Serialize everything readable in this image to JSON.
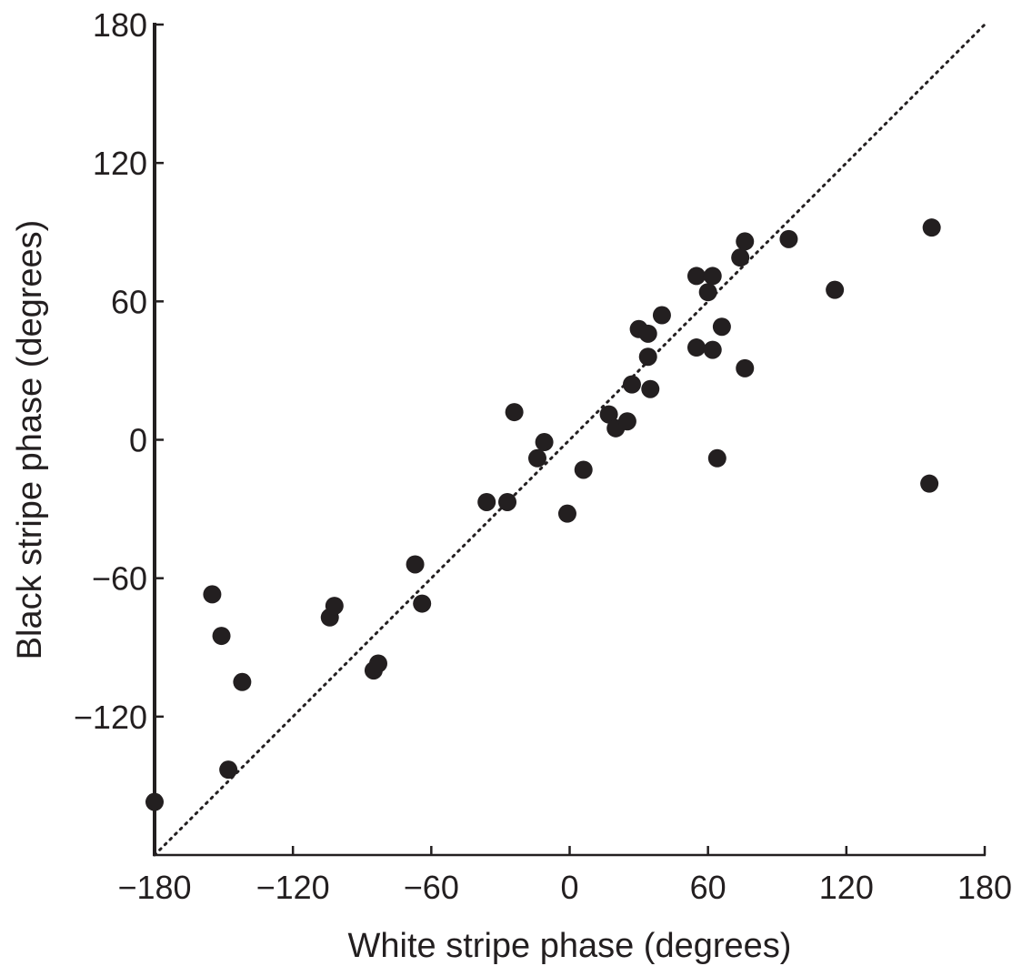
{
  "chart_data": {
    "type": "scatter",
    "title": "",
    "xlabel": "White stripe phase (degrees)",
    "ylabel": "Black stripe phase (degrees)",
    "xlim": [
      -180,
      180
    ],
    "ylim": [
      -180,
      180
    ],
    "xticks": [
      -180,
      -120,
      -60,
      0,
      60,
      120,
      180
    ],
    "yticks": [
      -120,
      -60,
      0,
      60,
      120,
      180
    ],
    "xtick_labels": [
      "−180",
      "−120",
      "−60",
      "0",
      "60",
      "120",
      "180"
    ],
    "ytick_labels": [
      "−120",
      "−60",
      "0",
      "60",
      "120",
      "180"
    ],
    "grid": false,
    "reference_line": {
      "style": "dotted",
      "from": [
        -180,
        -180
      ],
      "to": [
        180,
        180
      ]
    },
    "marker_color": "#231f20",
    "axis_color": "#231f20",
    "series": [
      {
        "points": [
          [
            -180,
            -157
          ],
          [
            -155,
            -67
          ],
          [
            -151,
            -85
          ],
          [
            -148,
            -143
          ],
          [
            -142,
            -105
          ],
          [
            -104,
            -77
          ],
          [
            -102,
            -72
          ],
          [
            -85,
            -100
          ],
          [
            -83,
            -97
          ],
          [
            -67,
            -54
          ],
          [
            -64,
            -71
          ],
          [
            -36,
            -27
          ],
          [
            -27,
            -27
          ],
          [
            -24,
            12
          ],
          [
            -14,
            -8
          ],
          [
            -11,
            -1
          ],
          [
            -1,
            -32
          ],
          [
            6,
            -13
          ],
          [
            17,
            11
          ],
          [
            20,
            5
          ],
          [
            25,
            8
          ],
          [
            27,
            24
          ],
          [
            30,
            48
          ],
          [
            34,
            46
          ],
          [
            34,
            36
          ],
          [
            35,
            22
          ],
          [
            40,
            54
          ],
          [
            55,
            40
          ],
          [
            55,
            71
          ],
          [
            60,
            64
          ],
          [
            62,
            39
          ],
          [
            62,
            71
          ],
          [
            64,
            -8
          ],
          [
            66,
            49
          ],
          [
            74,
            79
          ],
          [
            76,
            86
          ],
          [
            76,
            31
          ],
          [
            95,
            87
          ],
          [
            115,
            65
          ],
          [
            156,
            -19
          ],
          [
            157,
            92
          ]
        ]
      }
    ]
  }
}
